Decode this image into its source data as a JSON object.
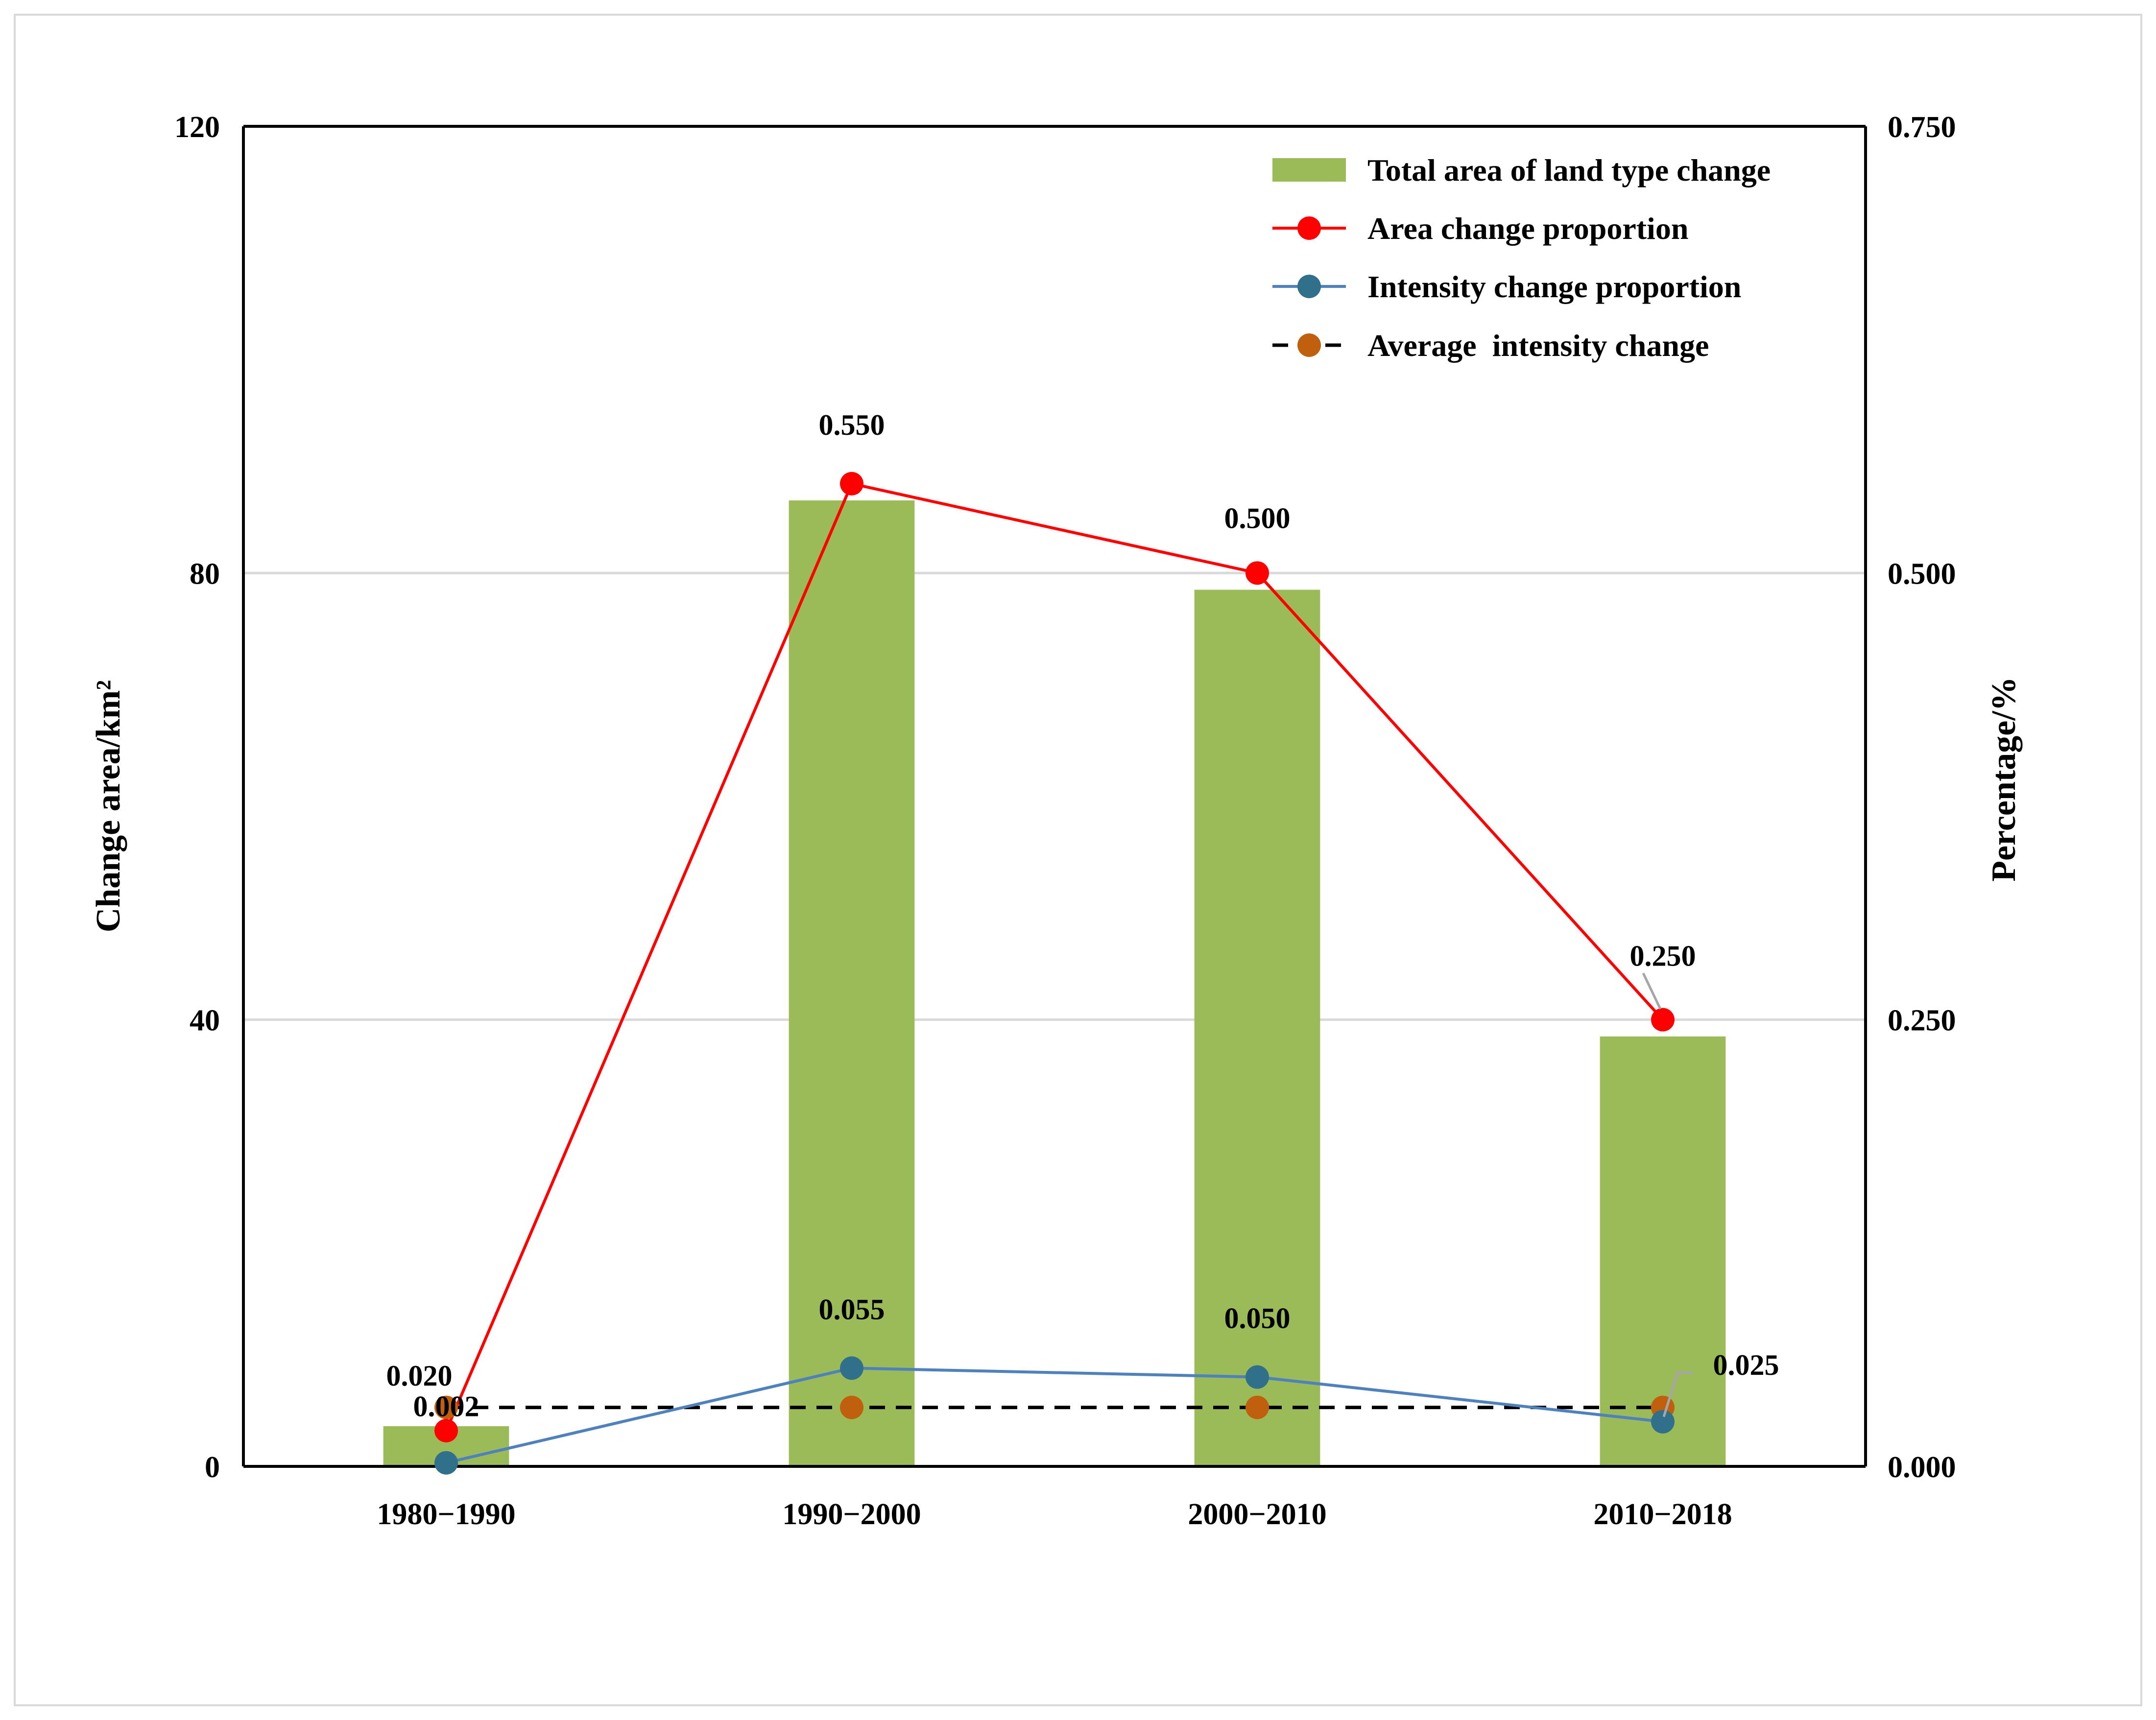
{
  "chart_data": {
    "type": "bar+line",
    "categories": [
      "1980−1990",
      "1990−2000",
      "2000−2010",
      "2010−2018"
    ],
    "left_axis": {
      "label": "Change area/km²",
      "min": 0,
      "max": 120,
      "ticks": [
        0,
        40,
        80,
        120
      ],
      "tick_labels": [
        "0",
        "40",
        "80",
        "120"
      ]
    },
    "right_axis": {
      "label": "Percentage/%",
      "min": 0,
      "max": 0.75,
      "ticks": [
        0,
        0.25,
        0.5,
        0.75
      ],
      "tick_labels": [
        "0.000",
        "0.250",
        "0.500",
        "0.750"
      ]
    },
    "gridlines": true,
    "legend_position": "top-right",
    "series": [
      {
        "name": "Total area of land type change",
        "kind": "bar",
        "axis": "left",
        "color": "#9bbb59",
        "values": [
          3.6,
          86.5,
          78.5,
          38.5
        ]
      },
      {
        "name": "Area change proportion",
        "kind": "line",
        "axis": "right",
        "color": "#ff0000",
        "values": [
          0.02,
          0.55,
          0.5,
          0.25
        ],
        "data_labels": [
          "0.020",
          "0.550",
          "0.500",
          "0.250"
        ]
      },
      {
        "name": "Intensity change proportion",
        "kind": "line",
        "axis": "right",
        "color": "#4f81bd",
        "marker_color": "#31708a",
        "values": [
          0.002,
          0.055,
          0.05,
          0.025
        ],
        "data_labels": [
          "0.002",
          "0.055",
          "0.050",
          "0.025"
        ]
      },
      {
        "name": "Average  intensity change",
        "kind": "dashed-line",
        "axis": "right",
        "color": "#000000",
        "marker_color": "#c0600f",
        "values": [
          0.033,
          0.033,
          0.033,
          0.033
        ]
      }
    ]
  }
}
